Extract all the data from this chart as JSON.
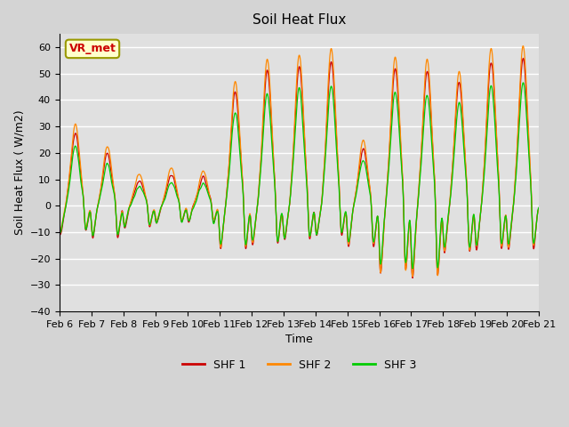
{
  "title": "Soil Heat Flux",
  "xlabel": "Time",
  "ylabel": "Soil Heat Flux ( W/m2)",
  "ylim": [
    -40,
    65
  ],
  "yticks": [
    -40,
    -30,
    -20,
    -10,
    0,
    10,
    20,
    30,
    40,
    50,
    60
  ],
  "annotation_text": "VR_met",
  "annotation_color": "#cc0000",
  "annotation_bg": "#ffffcc",
  "annotation_border": "#999900",
  "series_colors": [
    "#cc0000",
    "#ff8800",
    "#00cc00"
  ],
  "series_labels": [
    "SHF 1",
    "SHF 2",
    "SHF 3"
  ],
  "x_tick_labels": [
    "Feb 6",
    "Feb 7",
    "Feb 8",
    "Feb 9",
    "Feb 10",
    "Feb 11",
    "Feb 12",
    "Feb 13",
    "Feb 14",
    "Feb 15",
    "Feb 16",
    "Feb 17",
    "Feb 18",
    "Feb 19",
    "Feb 20",
    "Feb 21"
  ],
  "bg_color": "#d4d4d4",
  "plot_bg_color": "#e0e0e0",
  "n_points": 3200,
  "n_days": 15,
  "legend_ncol": 3
}
